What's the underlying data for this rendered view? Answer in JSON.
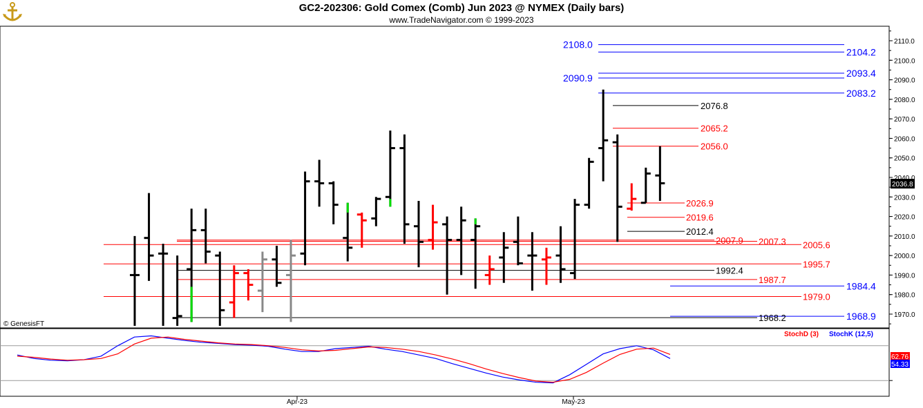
{
  "header": {
    "title": "GC2-202306:  Gold Comex (Comb) Jun 2023 @ NYMEX  (Daily bars)",
    "subtitle": "www.TradeNavigator.com © 1999-2023",
    "copyright": "© GenesisFT"
  },
  "colors": {
    "up": "#000000",
    "down": "#ff0000",
    "green": "#00dd00",
    "gray": "#888888",
    "blue_level": "#0000ff",
    "red_level": "#ff0000",
    "black_level": "#000000",
    "stoch_d": "#ff0000",
    "stoch_k": "#0000ff"
  },
  "chart_data": [
    {
      "type": "bar",
      "title": "GC2-202306:  Gold Comex (Comb) Jun 2023 @ NYMEX  (Daily bars)",
      "x_tick_labels": [
        "Apr-23",
        "May-23"
      ],
      "ylim": [
        1962,
        2118
      ],
      "y_ticks": [
        1970.0,
        1980.0,
        1990.0,
        2000.0,
        2010.0,
        2020.0,
        2030.0,
        2040.0,
        2050.0,
        2060.0,
        2070.0,
        2080.0,
        2090.0,
        2100.0,
        2110.0
      ],
      "last_price": "2036.8",
      "bars": [
        {
          "h": 2010,
          "l": 1964,
          "o": 1990,
          "c": 1990,
          "color": "black"
        },
        {
          "h": 2032,
          "l": 1987,
          "o": 2009,
          "c": 2000,
          "color": "black"
        },
        {
          "h": 2006,
          "l": 1964,
          "o": 2001,
          "c": 2001,
          "color": "black"
        },
        {
          "h": 2000,
          "l": 1964,
          "o": 1968,
          "c": 1969,
          "color": "black"
        },
        {
          "h": 2024,
          "l": 1966,
          "o": 1993,
          "c": 2013,
          "color": "black",
          "seg": [
            1966,
            1984,
            "green"
          ]
        },
        {
          "h": 2024,
          "l": 1996,
          "o": 2013,
          "c": 2002,
          "color": "black"
        },
        {
          "h": 2002,
          "l": 1964,
          "o": 2000,
          "c": 1972,
          "color": "black"
        },
        {
          "h": 1995,
          "l": 1968,
          "o": 1976,
          "c": 1991,
          "color": "red"
        },
        {
          "h": 1993,
          "l": 1977,
          "o": 1991,
          "c": 1985,
          "color": "red"
        },
        {
          "h": 2002,
          "l": 1971,
          "o": 1982,
          "c": 1998,
          "color": "gray"
        },
        {
          "h": 2005,
          "l": 1984,
          "o": 1998,
          "c": 1986,
          "color": "black"
        },
        {
          "h": 2008,
          "l": 1966,
          "o": 1990,
          "c": 2000,
          "color": "gray"
        },
        {
          "h": 2043,
          "l": 1995,
          "o": 2001,
          "c": 2038,
          "color": "black"
        },
        {
          "h": 2049,
          "l": 2025,
          "o": 2038,
          "c": 2037,
          "color": "black"
        },
        {
          "h": 2038,
          "l": 2016,
          "o": 2037,
          "c": 2026,
          "color": "black"
        },
        {
          "h": 2027,
          "l": 1997,
          "o": 2009,
          "c": 2004,
          "color": "black",
          "seg": [
            2022,
            2027,
            "green"
          ]
        },
        {
          "h": 2022,
          "l": 2004,
          "o": 2021,
          "c": 2018,
          "color": "red"
        },
        {
          "h": 2030,
          "l": 2015,
          "o": 2019,
          "c": 2029,
          "color": "black"
        },
        {
          "h": 2064,
          "l": 2025,
          "o": 2030,
          "c": 2055,
          "color": "black",
          "seg": [
            2025,
            2029,
            "green"
          ]
        },
        {
          "h": 2062,
          "l": 2006,
          "o": 2055,
          "c": 2016,
          "color": "black"
        },
        {
          "h": 2028,
          "l": 1994,
          "o": 2015,
          "c": 2007,
          "color": "black"
        },
        {
          "h": 2026,
          "l": 2003,
          "o": 2008,
          "c": 2017,
          "color": "red"
        },
        {
          "h": 2020,
          "l": 1980,
          "o": 2016,
          "c": 2008,
          "color": "black"
        },
        {
          "h": 2025,
          "l": 1990,
          "o": 2008,
          "c": 2018,
          "color": "black"
        },
        {
          "h": 2019,
          "l": 1983,
          "o": 2008,
          "c": 2015,
          "color": "black",
          "seg": [
            2016,
            2019,
            "green"
          ]
        },
        {
          "h": 2000,
          "l": 1985,
          "o": 1990,
          "c": 1993,
          "color": "red"
        },
        {
          "h": 2012,
          "l": 1986,
          "o": 1999,
          "c": 2004,
          "color": "black"
        },
        {
          "h": 2020,
          "l": 1995,
          "o": 2007,
          "c": 1996,
          "color": "black"
        },
        {
          "h": 2012,
          "l": 1982,
          "o": 2000,
          "c": 2000,
          "color": "black"
        },
        {
          "h": 2004,
          "l": 1985,
          "o": 1998,
          "c": 1999,
          "color": "red"
        },
        {
          "h": 2015,
          "l": 1986,
          "o": 2000,
          "c": 1993,
          "color": "black"
        },
        {
          "h": 2029,
          "l": 1988,
          "o": 1991,
          "c": 2026,
          "color": "black"
        },
        {
          "h": 2050,
          "l": 2024,
          "o": 2026,
          "c": 2048,
          "color": "black"
        },
        {
          "h": 2085,
          "l": 2038,
          "o": 2055,
          "c": 2059,
          "color": "black"
        },
        {
          "h": 2062,
          "l": 2007,
          "o": 2058,
          "c": 2025,
          "color": "black"
        },
        {
          "h": 2037,
          "l": 2023,
          "o": 2024,
          "c": 2029,
          "color": "red"
        },
        {
          "h": 2045,
          "l": 2027,
          "o": 2027,
          "c": 2042,
          "color": "black"
        },
        {
          "h": 2056,
          "l": 2028,
          "o": 2041,
          "c": 2037,
          "color": "black"
        }
      ],
      "levels": [
        {
          "value": 2108.0,
          "label": "2108.0",
          "color": "blue",
          "side": "left"
        },
        {
          "value": 2104.2,
          "label": "2104.2",
          "color": "blue",
          "side": "right"
        },
        {
          "value": 2093.4,
          "label": "2093.4",
          "color": "blue",
          "side": "right"
        },
        {
          "value": 2090.9,
          "label": "2090.9",
          "color": "blue",
          "side": "left"
        },
        {
          "value": 2083.2,
          "label": "2083.2",
          "color": "blue",
          "side": "right"
        },
        {
          "value": 2076.8,
          "label": "2076.8",
          "color": "black",
          "side": "mid"
        },
        {
          "value": 2065.2,
          "label": "2065.2",
          "color": "red",
          "side": "mid"
        },
        {
          "value": 2056.0,
          "label": "2056.0",
          "color": "red",
          "side": "mid"
        },
        {
          "value": 2026.9,
          "label": "2026.9",
          "color": "red",
          "side": "mid"
        },
        {
          "value": 2019.6,
          "label": "2019.6",
          "color": "red",
          "side": "mid"
        },
        {
          "value": 2012.4,
          "label": "2012.4",
          "color": "black",
          "side": "mid"
        },
        {
          "value": 2007.9,
          "label": "2007.9",
          "color": "red",
          "side": "mid"
        },
        {
          "value": 2007.3,
          "label": "2007.3",
          "color": "red",
          "side": "mid"
        },
        {
          "value": 2005.6,
          "label": "2005.6",
          "color": "red",
          "side": "mid"
        },
        {
          "value": 1995.7,
          "label": "1995.7",
          "color": "red",
          "side": "mid"
        },
        {
          "value": 1992.4,
          "label": "1992.4",
          "color": "black",
          "side": "mid"
        },
        {
          "value": 1987.7,
          "label": "1987.7",
          "color": "red",
          "side": "mid"
        },
        {
          "value": 1984.4,
          "label": "1984.4",
          "color": "blue",
          "side": "right"
        },
        {
          "value": 1979.0,
          "label": "1979.0",
          "color": "red",
          "side": "mid"
        },
        {
          "value": 1968.9,
          "label": "1968.9",
          "color": "blue",
          "side": "right"
        },
        {
          "value": 1968.2,
          "label": "1968.2",
          "color": "black",
          "side": "mid"
        }
      ]
    },
    {
      "type": "line",
      "title": "",
      "legend": [
        "StochD (3)",
        "StochK (12,5)"
      ],
      "ylim": [
        0,
        100
      ],
      "last_values": {
        "StochD": "62.76",
        "StochK": "54.33"
      },
      "series": [
        {
          "name": "StochK (12,5)",
          "color": "blue",
          "values": [
            64,
            58,
            55,
            54,
            56,
            62,
            80,
            95,
            97,
            93,
            89,
            86,
            84,
            82,
            81,
            79,
            74,
            70,
            70,
            75,
            77,
            79,
            74,
            70,
            64,
            58,
            49,
            41,
            33,
            26,
            21,
            17,
            16,
            30,
            48,
            66,
            75,
            80,
            73,
            58
          ]
        },
        {
          "name": "StochD (3)",
          "color": "red",
          "values": [
            62,
            60,
            57,
            55,
            56,
            58,
            66,
            83,
            93,
            95,
            91,
            88,
            85,
            83,
            82,
            80,
            77,
            73,
            71,
            72,
            75,
            78,
            77,
            74,
            70,
            64,
            57,
            49,
            40,
            32,
            25,
            19,
            17,
            22,
            34,
            50,
            65,
            74,
            76,
            65
          ]
        }
      ]
    }
  ]
}
